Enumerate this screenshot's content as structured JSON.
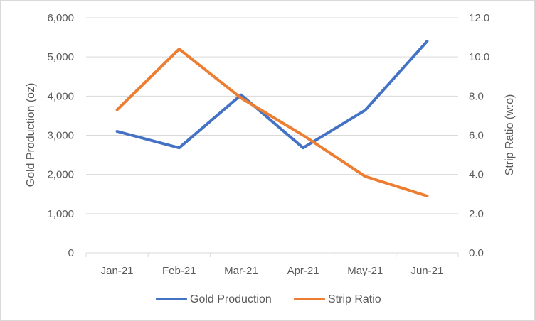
{
  "chart_data": {
    "type": "line",
    "title": "",
    "categories": [
      "Jan-21",
      "Feb-21",
      "Mar-21",
      "Apr-21",
      "May-21",
      "Jun-21"
    ],
    "series": [
      {
        "name": "Gold Production",
        "axis": "left",
        "color": "#4472C4",
        "values": [
          3100,
          2680,
          4030,
          2680,
          3640,
          5400
        ]
      },
      {
        "name": "Strip Ratio",
        "axis": "right",
        "color": "#ED7D31",
        "values": [
          7.3,
          10.4,
          7.9,
          6.0,
          3.9,
          2.9
        ]
      }
    ],
    "ylabel": "Gold Production (oz)",
    "y2label": "Strip Ratio (w:o)",
    "ylim": [
      0,
      6000
    ],
    "y2lim": [
      0,
      12
    ],
    "yticks": [
      "0",
      "1,000",
      "2,000",
      "3,000",
      "4,000",
      "5,000",
      "6,000"
    ],
    "y2ticks": [
      "0.0",
      "2.0",
      "4.0",
      "6.0",
      "8.0",
      "10.0",
      "12.0"
    ],
    "grid": true,
    "legend": "bottom-center"
  }
}
